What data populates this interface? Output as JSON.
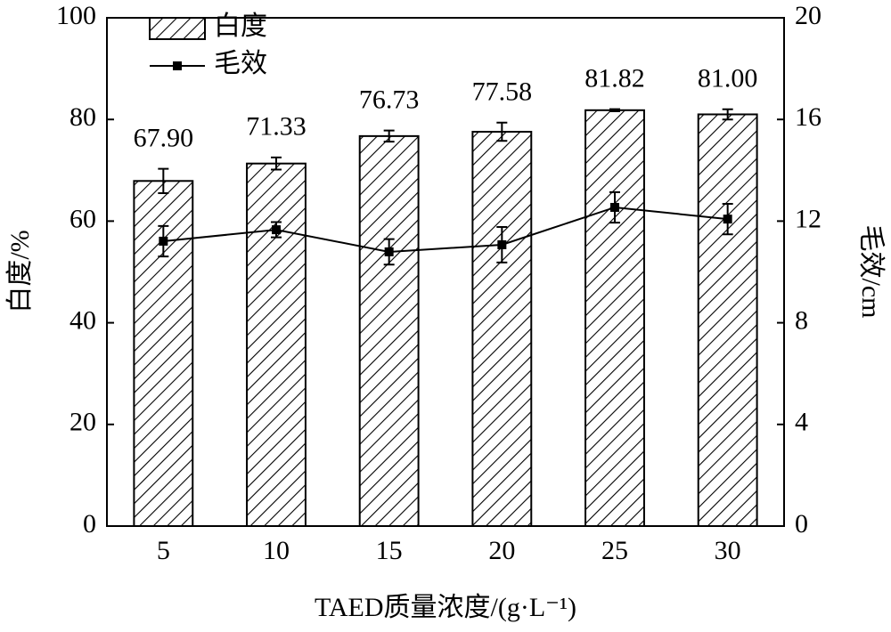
{
  "chart_data": {
    "type": "bar",
    "x_label": "TAED质量浓度/(g·L⁻¹)",
    "y_label": "白度/%",
    "y2_label": "毛效/cm",
    "categories": [
      "5",
      "10",
      "15",
      "20",
      "25",
      "30"
    ],
    "series": [
      {
        "name": "白度",
        "type": "bar",
        "color": "#000000",
        "values": [
          67.9,
          71.33,
          76.73,
          77.58,
          81.82,
          81.0
        ],
        "value_labels": [
          "67.90",
          "71.33",
          "76.73",
          "77.58",
          "81.82",
          "81.00"
        ],
        "errors": [
          2.4,
          1.2,
          1.1,
          1.8,
          0.2,
          1.0
        ]
      },
      {
        "name": "毛效",
        "type": "line",
        "axis": "y2",
        "color": "#000000",
        "values": [
          11.21,
          11.66,
          10.79,
          11.07,
          12.54,
          12.08
        ],
        "errors": [
          0.6,
          0.3,
          0.5,
          0.7,
          0.6,
          0.6
        ]
      }
    ],
    "ylim": [
      0,
      100
    ],
    "yticks": [
      0,
      20,
      40,
      60,
      80,
      100
    ],
    "y2lim": [
      0,
      20
    ],
    "y2ticks": [
      0,
      4,
      8,
      12,
      16,
      20
    ],
    "legend": "top-left"
  }
}
